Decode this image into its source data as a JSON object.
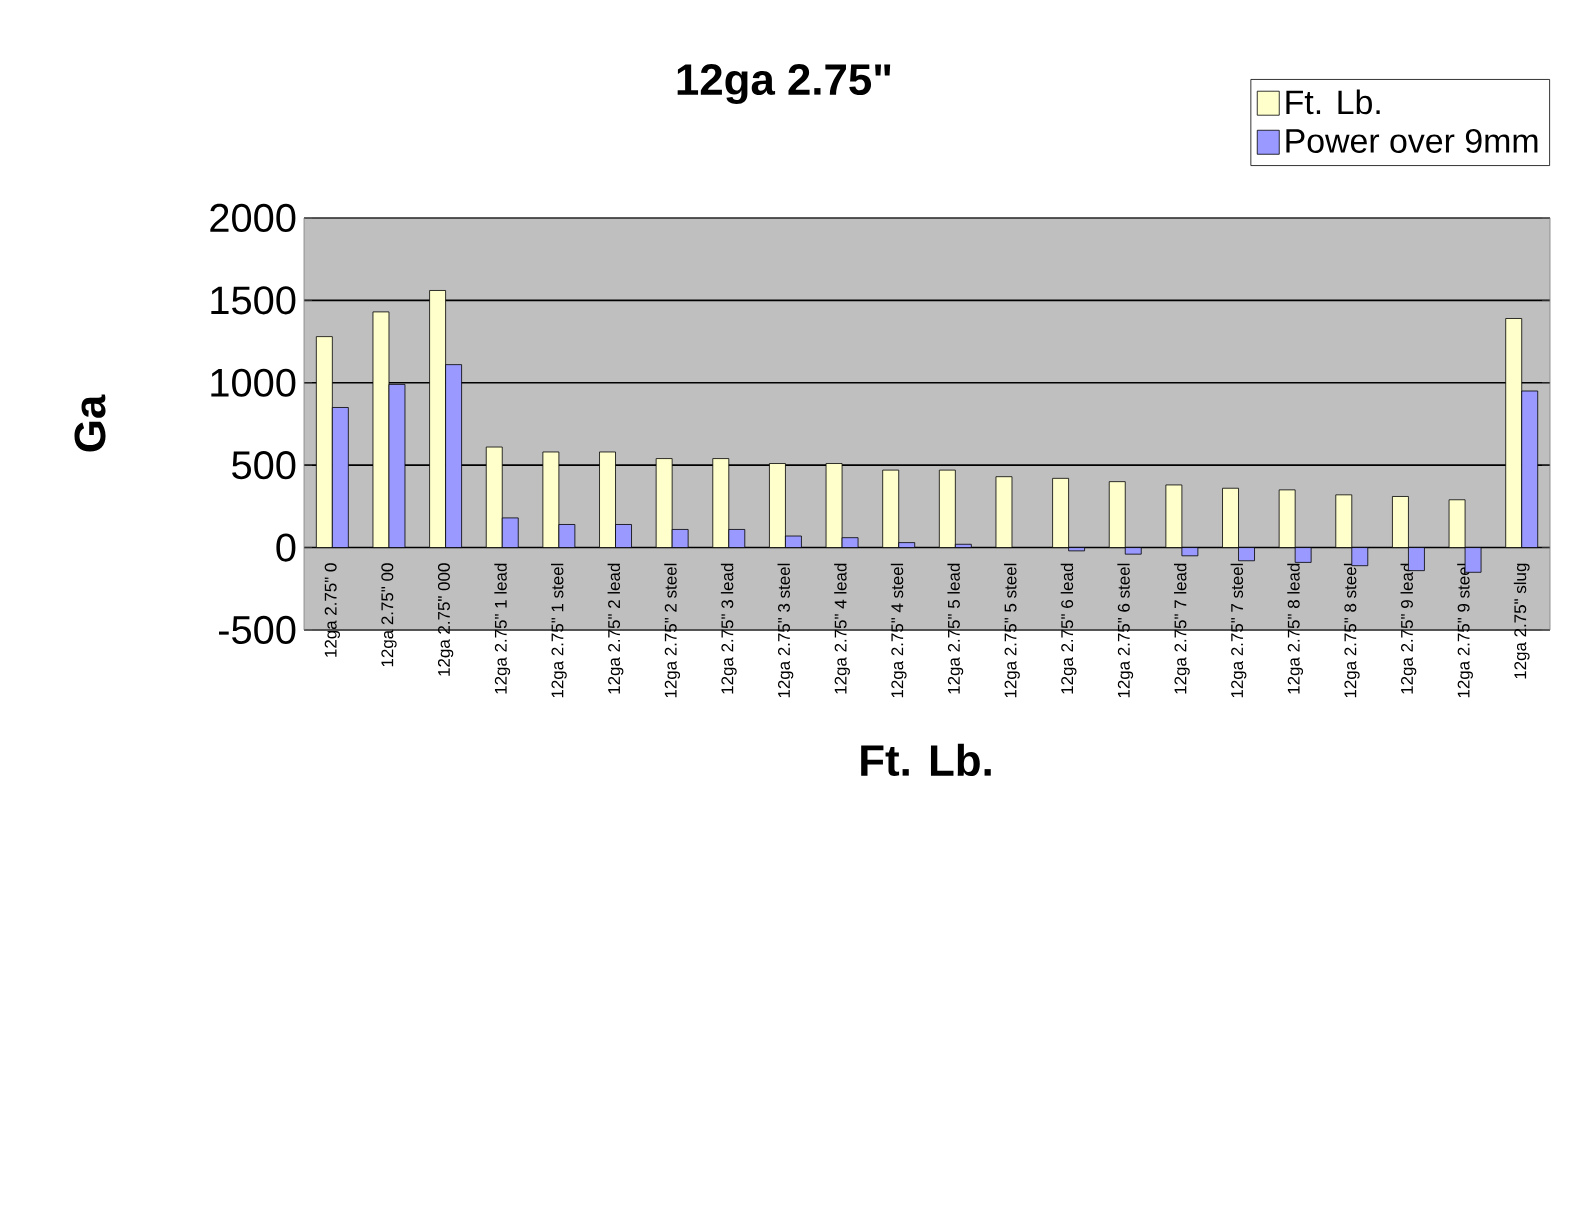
{
  "chart_data": {
    "type": "bar",
    "title": "12ga 2.75\"",
    "xlabel": "Ft. Lb.",
    "ylabel": "Ga",
    "categories": [
      "12ga 2.75\" 0",
      "12ga 2.75\" 00",
      "12ga 2.75\" 000",
      "12ga 2.75\" 1 lead",
      "12ga 2.75\" 1 steel",
      "12ga 2.75\" 2 lead",
      "12ga 2.75\" 2 steel",
      "12ga 2.75\" 3 lead",
      "12ga 2.75\" 3 steel",
      "12ga 2.75\" 4 lead",
      "12ga 2.75\" 4 steel",
      "12ga 2.75\" 5 lead",
      "12ga 2.75\" 5 steel",
      "12ga 2.75\" 6 lead",
      "12ga 2.75\" 6 steel",
      "12ga 2.75\" 7 lead",
      "12ga 2.75\" 7 steel",
      "12ga 2.75\" 8 lead",
      "12ga 2.75\" 8 steel",
      "12ga 2.75\" 9 lead",
      "12ga 2.75\" 9 steel",
      "12ga 2.75\" slug"
    ],
    "series": [
      {
        "name": "Ft. Lb.",
        "color": "#ffffcc",
        "values": [
          1280,
          1430,
          1560,
          610,
          580,
          580,
          540,
          540,
          510,
          510,
          470,
          470,
          430,
          420,
          400,
          380,
          360,
          350,
          320,
          310,
          290,
          1390
        ]
      },
      {
        "name": "Power over 9mm",
        "color": "#9999ff",
        "values": [
          850,
          990,
          1110,
          180,
          140,
          140,
          110,
          110,
          70,
          60,
          30,
          20,
          null,
          -20,
          -40,
          -50,
          -80,
          -90,
          -110,
          -140,
          -150,
          950
        ]
      }
    ],
    "ylim": [
      -500,
      2000
    ],
    "yticks": [
      -500,
      0,
      500,
      1000,
      1500,
      2000
    ],
    "grid": "y",
    "legend": "top right"
  }
}
